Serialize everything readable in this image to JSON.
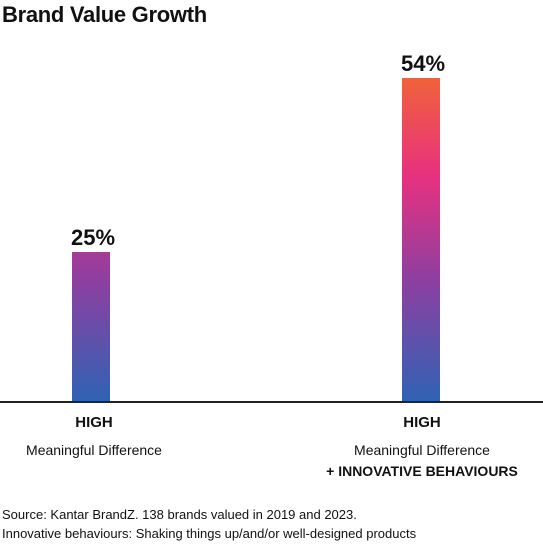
{
  "chart_data": {
    "type": "bar",
    "title": "Brand Value Growth",
    "categories": [
      {
        "main": "HIGH",
        "sub": "Meaningful Difference",
        "extra": ""
      },
      {
        "main": "HIGH",
        "sub": "Meaningful Difference",
        "extra": "+ INNOVATIVE BEHAVIOURS"
      }
    ],
    "values": [
      25,
      54
    ],
    "value_labels": [
      "25%",
      "54%"
    ],
    "ylim": [
      0,
      54
    ],
    "grid": false,
    "legend": "none",
    "colors": {
      "bar_gradient": [
        "#f0623a",
        "#e8317f",
        "#8e3fa0",
        "#2f63b4"
      ],
      "axis": "#222222"
    }
  },
  "footnotes": [
    "Source: Kantar BrandZ. 138 brands valued in 2019 and 2023.",
    "Innovative behaviours: Shaking things up/and/or well-designed products"
  ]
}
